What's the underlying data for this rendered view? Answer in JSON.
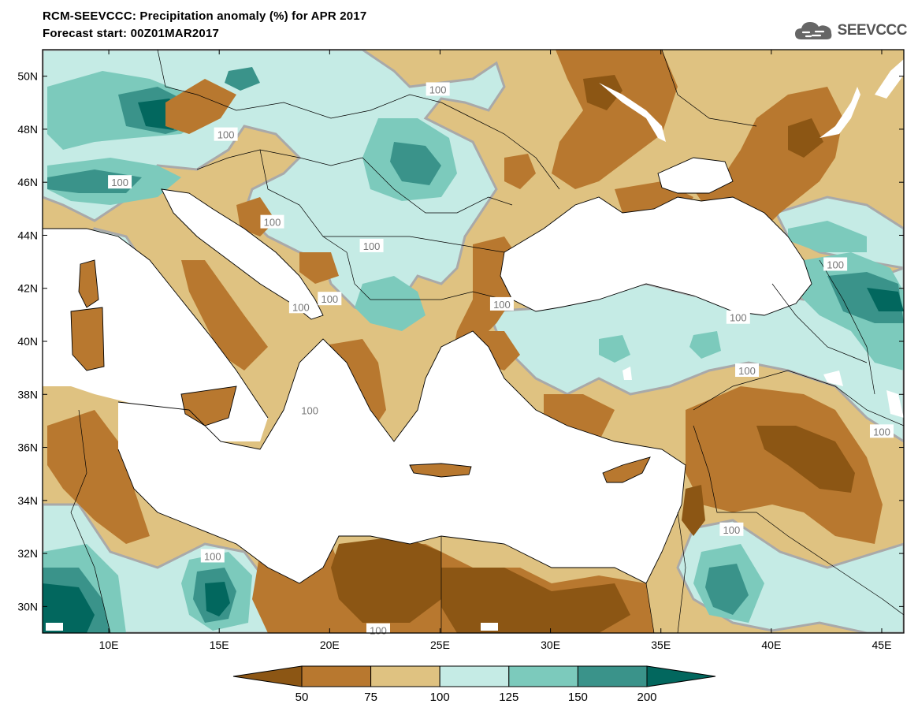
{
  "header": {
    "title_line1": "RCM-SEEVCCC: Precipitation anomaly (%) for APR 2017",
    "title_line2": "Forecast start: 00Z01MAR2017",
    "logo_text": "SEEVCCC"
  },
  "map": {
    "lon_range": [
      7,
      46
    ],
    "lat_range": [
      29,
      51
    ],
    "lon_ticks": [
      {
        "value": 10,
        "label": "10E"
      },
      {
        "value": 15,
        "label": "15E"
      },
      {
        "value": 20,
        "label": "20E"
      },
      {
        "value": 25,
        "label": "25E"
      },
      {
        "value": 30,
        "label": "30E"
      },
      {
        "value": 35,
        "label": "35E"
      },
      {
        "value": 40,
        "label": "40E"
      },
      {
        "value": 45,
        "label": "45E"
      }
    ],
    "lat_ticks": [
      {
        "value": 30,
        "label": "30N"
      },
      {
        "value": 32,
        "label": "32N"
      },
      {
        "value": 34,
        "label": "34N"
      },
      {
        "value": 36,
        "label": "36N"
      },
      {
        "value": 38,
        "label": "38N"
      },
      {
        "value": 40,
        "label": "40N"
      },
      {
        "value": 42,
        "label": "42N"
      },
      {
        "value": 44,
        "label": "44N"
      },
      {
        "value": 46,
        "label": "46N"
      },
      {
        "value": 48,
        "label": "48N"
      },
      {
        "value": 50,
        "label": "50N"
      }
    ],
    "contour_labels": [
      {
        "lon": 24.9,
        "lat": 49.5,
        "text": "100"
      },
      {
        "lon": 15.3,
        "lat": 47.8,
        "text": "100"
      },
      {
        "lon": 10.5,
        "lat": 46.0,
        "text": "100"
      },
      {
        "lon": 17.4,
        "lat": 44.5,
        "text": "100"
      },
      {
        "lon": 21.9,
        "lat": 43.6,
        "text": "100"
      },
      {
        "lon": 18.7,
        "lat": 41.3,
        "text": "100"
      },
      {
        "lon": 20.0,
        "lat": 41.6,
        "text": "100"
      },
      {
        "lon": 27.8,
        "lat": 41.4,
        "text": "100"
      },
      {
        "lon": 38.5,
        "lat": 40.9,
        "text": "100"
      },
      {
        "lon": 38.9,
        "lat": 38.9,
        "text": "100"
      },
      {
        "lon": 42.9,
        "lat": 42.9,
        "text": "100"
      },
      {
        "lon": 45.0,
        "lat": 36.6,
        "text": "100"
      },
      {
        "lon": 38.2,
        "lat": 32.9,
        "text": "100"
      },
      {
        "lon": 14.7,
        "lat": 31.9,
        "text": "100"
      },
      {
        "lon": 22.2,
        "lat": 29.1,
        "text": "100"
      },
      {
        "lon": 19.1,
        "lat": 37.4,
        "text": "100"
      }
    ]
  },
  "colorbar": {
    "colors": [
      "#8c5614",
      "#b8782f",
      "#dfc281",
      "#c5ebe5",
      "#7ccabc",
      "#3a938a",
      "#02675e"
    ],
    "labels": [
      "50",
      "75",
      "100",
      "125",
      "150",
      "200"
    ]
  },
  "colors": {
    "very_dry": "#8c5614",
    "dry": "#b8782f",
    "slightly_dry": "#dfc281",
    "slightly_wet": "#c5ebe5",
    "wet": "#7ccabc",
    "very_wet": "#3a938a",
    "extreme_wet": "#02675e",
    "contour_100": "#a9a9a9"
  }
}
